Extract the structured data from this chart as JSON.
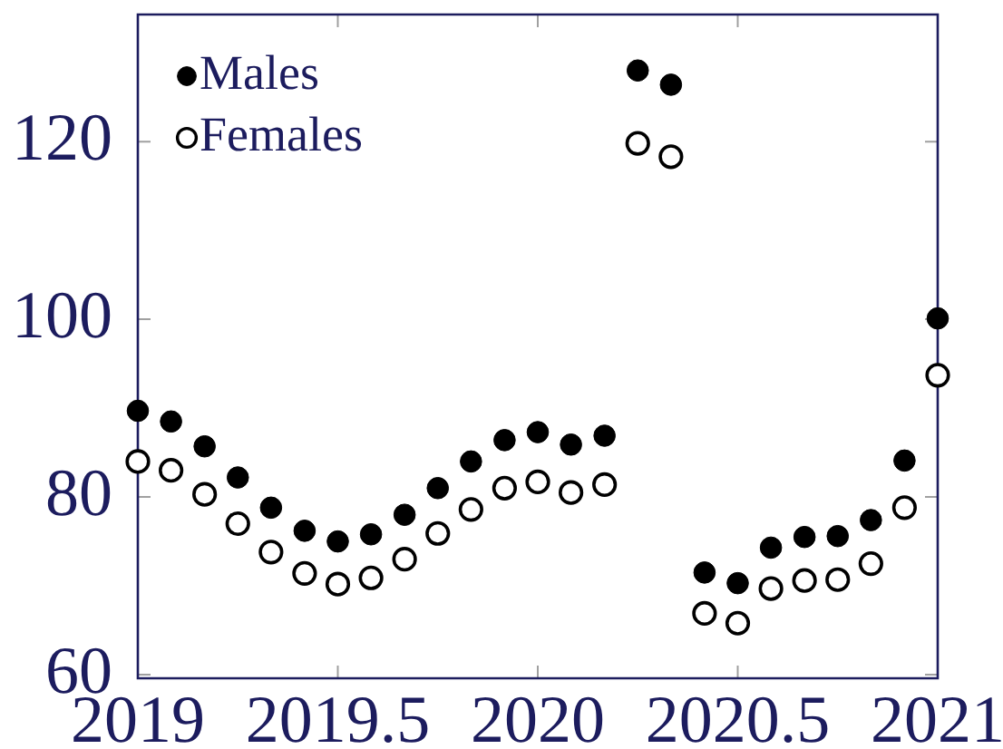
{
  "chart_data": {
    "type": "scatter",
    "x": [
      2019,
      2019.083,
      2019.167,
      2019.25,
      2019.333,
      2019.417,
      2019.5,
      2019.583,
      2019.667,
      2019.75,
      2019.833,
      2019.917,
      2020,
      2020.083,
      2020.167,
      2020.25,
      2020.333,
      2020.417,
      2020.5,
      2020.583,
      2020.667,
      2020.75,
      2020.833,
      2020.917,
      2021
    ],
    "series": [
      {
        "name": "Males",
        "color": "#000000",
        "values": [
          89.7,
          88.5,
          85.7,
          82.2,
          78.8,
          76.2,
          75.0,
          75.8,
          78.0,
          81.0,
          84.0,
          86.4,
          87.3,
          85.9,
          86.9,
          128.0,
          126.4,
          71.5,
          70.3,
          74.3,
          75.5,
          75.6,
          77.4,
          84.1,
          100.1
        ]
      },
      {
        "name": "Females",
        "color": "#000000",
        "marker": "circle-open",
        "values": [
          84.0,
          83.0,
          80.3,
          77.0,
          73.8,
          71.4,
          70.2,
          70.9,
          73.0,
          75.9,
          78.6,
          81.0,
          81.7,
          80.5,
          81.4,
          119.8,
          118.3,
          66.9,
          65.8,
          69.7,
          70.6,
          70.7,
          72.5,
          78.8,
          93.7
        ]
      }
    ],
    "xlim": [
      2019,
      2021
    ],
    "xticks": [
      2019,
      2019.5,
      2020,
      2020.5,
      2021
    ],
    "ylim": [
      59.6,
      134.3
    ],
    "yticks": [
      60,
      80,
      100,
      120
    ],
    "legend": "top left",
    "marker": "circle"
  }
}
